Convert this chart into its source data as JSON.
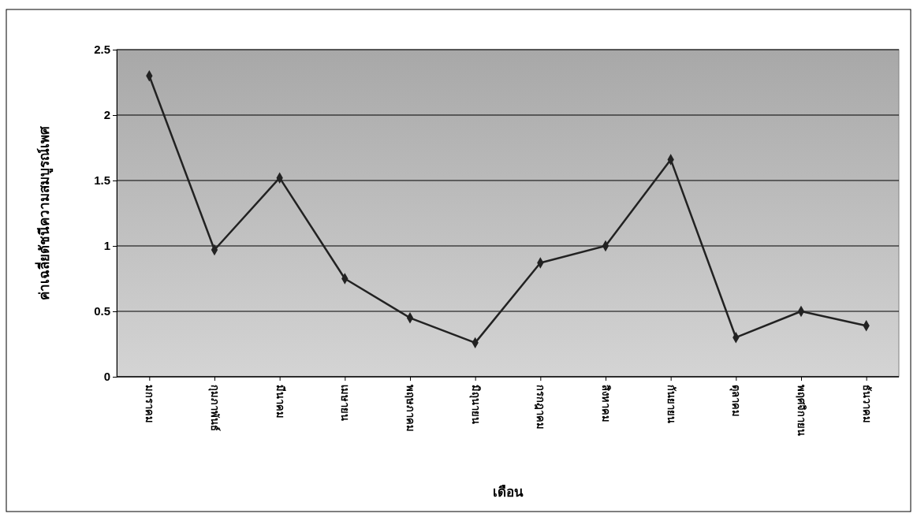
{
  "chart_data": {
    "type": "line",
    "xlabel": "เดือน",
    "ylabel": "ค่าเฉลี่ยดัชนีความสมบูรณ์เพศ",
    "categories": [
      "มกราคม",
      "กุมภาพันธ์",
      "มีนาคม",
      "เมษายน",
      "พฤษภาคม",
      "มิถุนายน",
      "กรกฎาคม",
      "สิงหาคม",
      "กันยายน",
      "ตุลาคม",
      "พฤศจิกายน",
      "ธันวาคม"
    ],
    "series": [
      {
        "color": "#222222",
        "values": [
          2.3,
          0.97,
          1.52,
          0.75,
          0.45,
          0.26,
          0.87,
          1.0,
          1.66,
          0.3,
          0.5,
          0.39
        ]
      }
    ],
    "ylim": [
      0,
      2.5
    ],
    "yticks": [
      0,
      0.5,
      1,
      1.5,
      2,
      2.5
    ],
    "grid": "y",
    "marker": "diamond",
    "line_style": "solid"
  }
}
